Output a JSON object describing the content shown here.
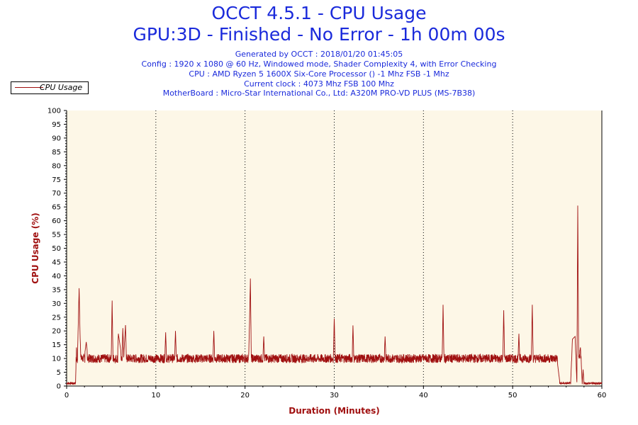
{
  "header": {
    "title": "OCCT 4.5.1 - CPU Usage",
    "subtitle": "GPU:3D - Finished - No Error - 1h 00m 00s",
    "info": [
      "Generated by OCCT : 2018/01/20 01:45:05",
      "Config : 1920 x 1080 @ 60 Hz, Windowed mode, Shader Complexity 4, with Error Checking",
      "CPU : AMD Ryzen 5 1600X Six-Core Processor () -1 Mhz FSB -1 Mhz",
      "Current clock : 4073 Mhz FSB 100 Mhz",
      "MotherBoard : Micro-Star International Co., Ltd: A320M PRO-VD PLUS (MS-7B38)"
    ]
  },
  "colors": {
    "series": "#a01010",
    "plot_bg": "#fdf7e7",
    "title": "#1a2adb",
    "axis_label": "#a01010"
  },
  "chart_data": {
    "type": "line",
    "xlabel": "Duration (Minutes)",
    "ylabel": "CPU Usage (%)",
    "xlim": [
      0,
      60
    ],
    "ylim": [
      0,
      100
    ],
    "x_ticks": [
      0,
      10,
      20,
      30,
      40,
      50,
      60
    ],
    "y_ticks": [
      0,
      5,
      10,
      15,
      20,
      25,
      30,
      35,
      40,
      45,
      50,
      55,
      60,
      65,
      70,
      75,
      80,
      85,
      90,
      95,
      100
    ],
    "grid": "vertical-dotted",
    "legend": "top-left",
    "series": [
      {
        "name": "CPU Usage",
        "baseline_approx": 10,
        "x": [
          0,
          0.5,
          1.0,
          1.1,
          1.2,
          1.4,
          1.5,
          1.6,
          2.0,
          2.2,
          2.4,
          5.0,
          5.1,
          5.2,
          5.7,
          5.8,
          6.2,
          6.3,
          6.4,
          6.6,
          6.7,
          11.0,
          11.1,
          11.2,
          12.1,
          12.2,
          12.3,
          16.4,
          16.5,
          16.6,
          20.4,
          20.5,
          20.6,
          20.7,
          20.8,
          22.0,
          22.1,
          22.2,
          29.9,
          30.0,
          30.1,
          32.0,
          32.1,
          32.2,
          35.6,
          35.7,
          35.8,
          40.0,
          42.1,
          42.2,
          42.3,
          48.9,
          49.0,
          49.1,
          50.6,
          50.7,
          50.8,
          52.1,
          52.2,
          52.3,
          54.0,
          55.0,
          55.3,
          55.5,
          56.0,
          56.5,
          56.7,
          57.0,
          57.2,
          57.3,
          57.4,
          57.6,
          57.8,
          57.9,
          58.0,
          60.0
        ],
        "y": [
          1,
          1,
          1,
          14,
          9,
          35.5,
          19,
          10,
          11,
          16,
          10,
          10,
          31,
          10,
          10,
          19,
          10,
          21,
          11,
          22,
          10,
          10,
          19.5,
          10,
          10,
          20,
          10,
          10,
          20,
          10,
          10,
          23,
          39,
          10,
          10,
          10,
          18,
          10,
          10,
          24.5,
          10,
          10,
          22,
          10,
          10,
          18,
          10,
          12,
          10,
          29.5,
          10,
          10,
          27.5,
          10,
          10,
          19,
          10,
          10,
          29.5,
          10,
          11,
          9,
          1,
          1,
          1,
          1,
          17,
          18,
          1,
          65.5,
          10,
          14,
          1,
          6,
          1,
          1
        ]
      }
    ]
  }
}
